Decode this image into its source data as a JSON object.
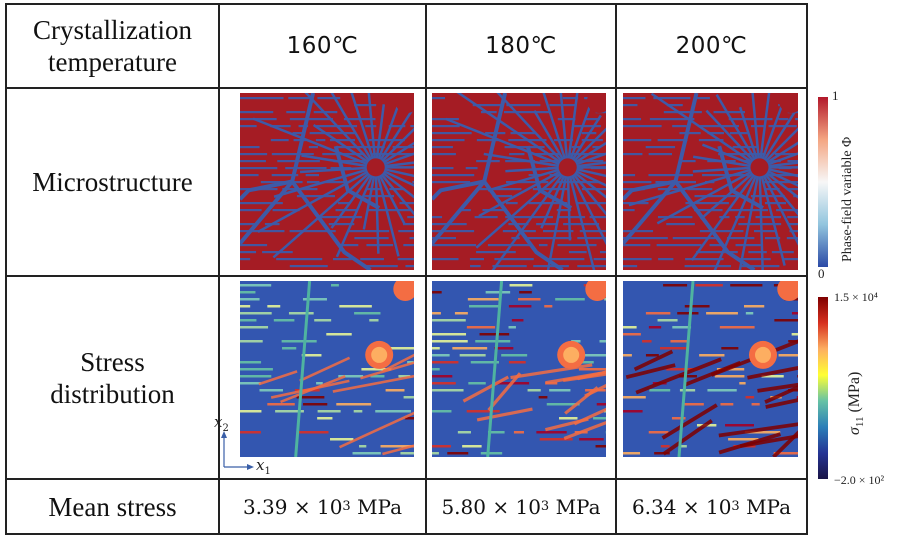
{
  "table": {
    "header_label": "Crystallization temperature",
    "header_label_line1": "Crystallization",
    "header_label_line2": "temperature",
    "temperatures": [
      "160℃",
      "180℃",
      "200℃"
    ],
    "rows": [
      {
        "label": "Microstructure"
      },
      {
        "label": "Stress distribution",
        "label_line1": "Stress",
        "label_line2": "distribution"
      },
      {
        "label": "Mean stress"
      }
    ],
    "mean_stress": [
      {
        "mantissa": "3.39",
        "times": "×",
        "base": "10",
        "exp": "3",
        "unit": "MPa"
      },
      {
        "mantissa": "5.80",
        "times": "×",
        "base": "10",
        "exp": "3",
        "unit": "MPa"
      },
      {
        "mantissa": "6.34",
        "times": "×",
        "base": "10",
        "exp": "3",
        "unit": "MPa"
      }
    ]
  },
  "colorbar_phase": {
    "title": "Phase-field variable Φ",
    "max_label": "1",
    "min_label": "0",
    "colors": [
      "#b2182b",
      "#f4a582",
      "#f7f7f7",
      "#92c5de",
      "#2b4aa6"
    ]
  },
  "colorbar_stress": {
    "title_symbol": "σ",
    "title_sub": "11",
    "title_unit": "(MPa)",
    "max_label": "1.5 × 10⁴",
    "min_label": "−2.0 × 10²",
    "colors": [
      "#7f0000",
      "#d7301f",
      "#fdae61",
      "#ffff33",
      "#66c2a5",
      "#2c7fb8",
      "#253494",
      "#1a1446"
    ]
  },
  "axes": {
    "x2": "x",
    "x2_sub": "2",
    "x1": "x",
    "x1_sub": "1"
  },
  "colors": {
    "matrix_blue": "#3d5aa8",
    "crystal_red": "#a51c24",
    "stress_bg": "#3356b0",
    "grid_line": "#222222"
  }
}
